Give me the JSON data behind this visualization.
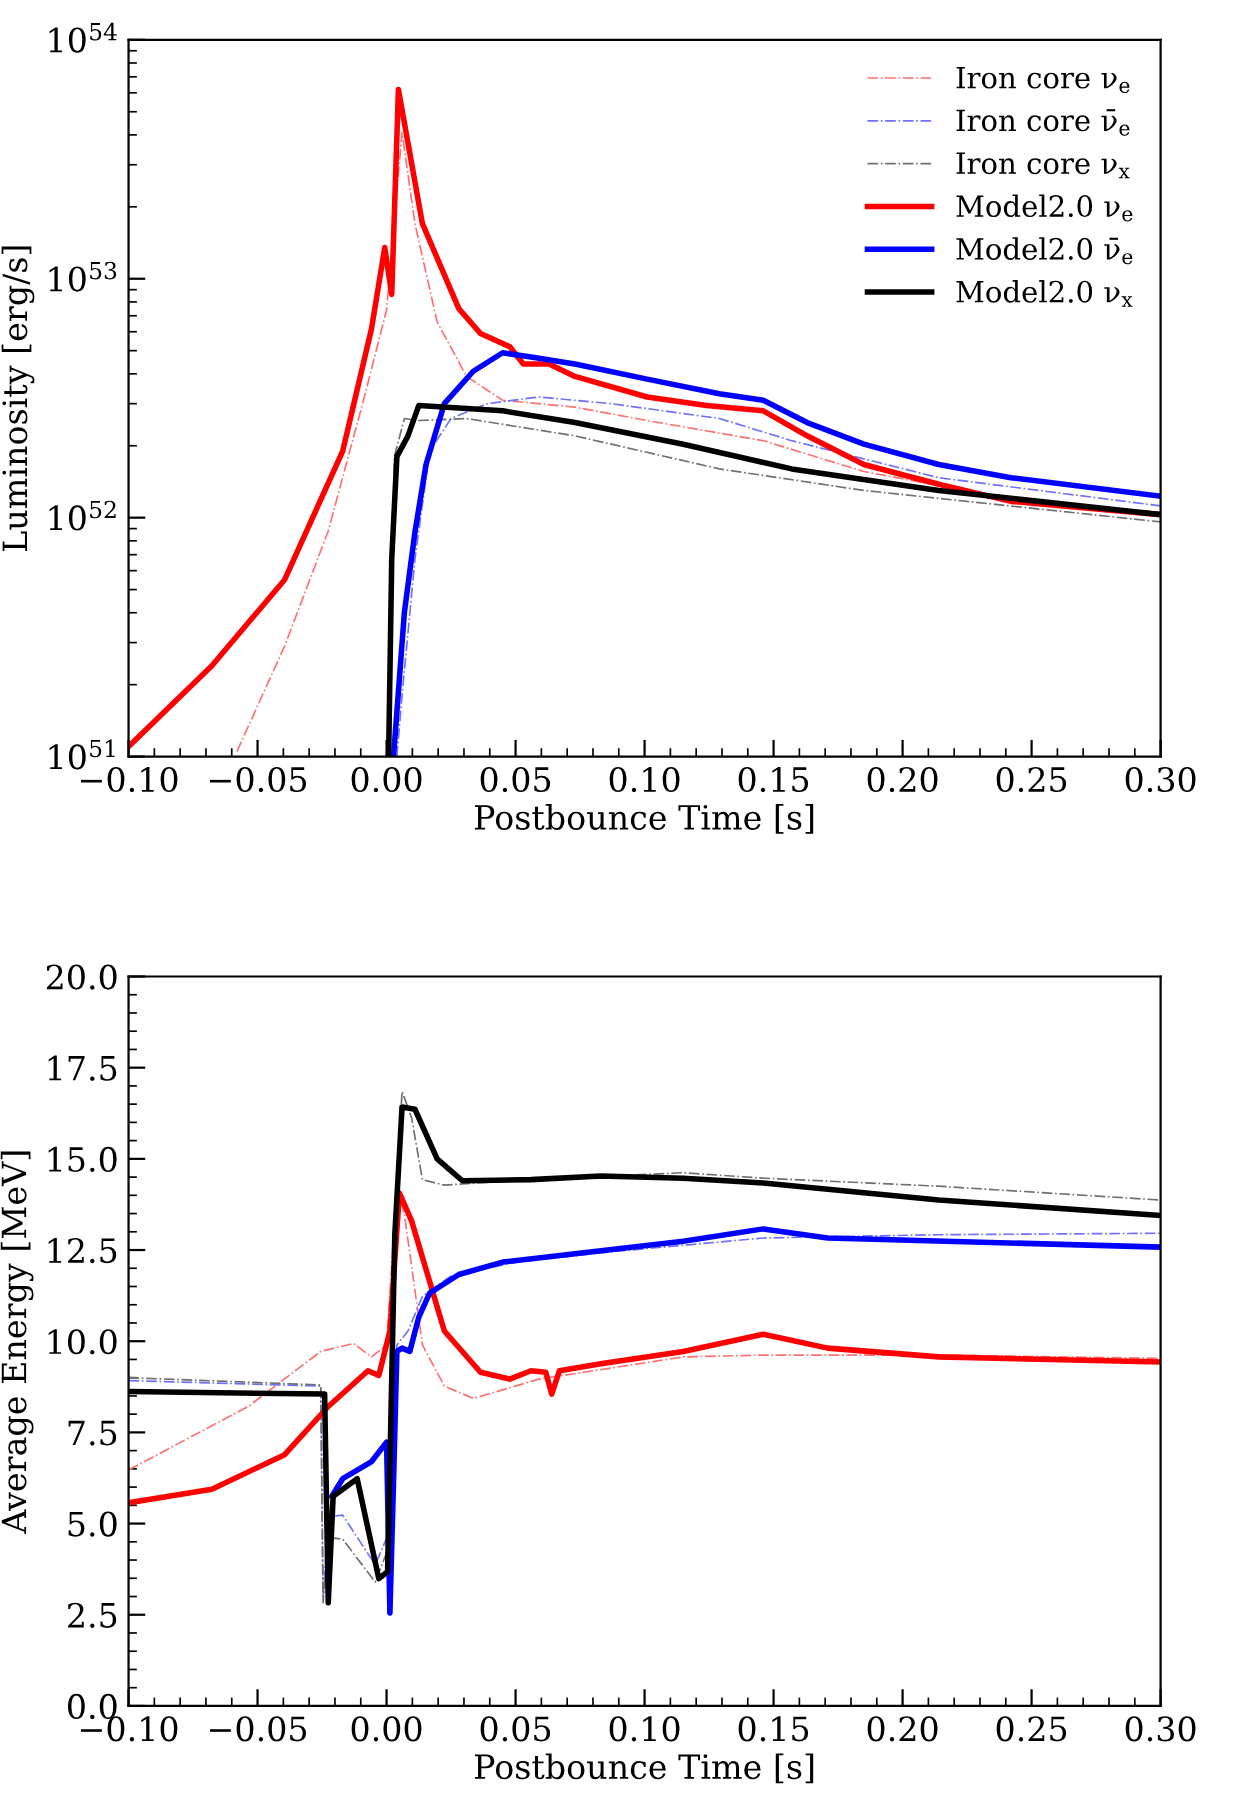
{
  "chart_data": [
    {
      "type": "line",
      "xlabel": "Postbounce Time [s]",
      "ylabel": "Luminosity [erg/s]",
      "log": "y",
      "legend": "top right",
      "grid": false,
      "xlim": [
        -0.1,
        0.3
      ],
      "ylim": [
        1e+51,
        1e+54
      ],
      "xticks": [
        {
          "value": -0.1,
          "label": "−0.10"
        },
        {
          "value": -0.05,
          "label": "−0.05"
        },
        {
          "value": 0.0,
          "label": "0.00"
        },
        {
          "value": 0.05,
          "label": "0.05"
        },
        {
          "value": 0.1,
          "label": "0.10"
        },
        {
          "value": 0.15,
          "label": "0.15"
        },
        {
          "value": 0.2,
          "label": "0.20"
        },
        {
          "value": 0.25,
          "label": "0.25"
        },
        {
          "value": 0.3,
          "label": "0.30"
        }
      ],
      "yticks": [
        {
          "value": 1e+51,
          "label": "10$^{51}$"
        },
        {
          "value": 1e+52,
          "label": "10$^{52}$"
        },
        {
          "value": 1e+53,
          "label": "10$^{53}$"
        },
        {
          "value": 1e+54,
          "label": "10$^{54}$"
        }
      ],
      "series": [
        {
          "name": "Iron core ν$_{e}$",
          "color": "#ff7070",
          "line_style": "dashdot",
          "x": [
            -0.058,
            -0.0395,
            -0.0226,
            -0.0086,
            0.0,
            0.006,
            0.011,
            0.0196,
            0.031,
            0.045,
            0.073,
            0.101,
            0.146,
            0.185,
            0.242,
            0.3
          ],
          "values": [
            1.05e+51,
            2.9e+51,
            8.8e+51,
            3.2e+52,
            7.4e+52,
            4.1e+53,
            1.7e+53,
            6.6e+52,
            3.9e+52,
            3.1e+52,
            2.9e+52,
            2.55e+52,
            2.1e+52,
            1.56e+52,
            1.2e+52,
            1.05e+52
          ]
        },
        {
          "name": "Iron core ν̄$_{e}$",
          "color": "#7070ff",
          "line_style": "dashdot",
          "x": [
            0.004,
            0.006,
            0.011,
            0.0167,
            0.025,
            0.039,
            0.059,
            0.087,
            0.129,
            0.157,
            0.214,
            0.3
          ],
          "values": [
            1e+51,
            1.8e+51,
            6.7e+51,
            1.9e+52,
            2.6e+52,
            3e+52,
            3.2e+52,
            3e+52,
            2.6e+52,
            2.1e+52,
            1.47e+52,
            1.12e+52
          ]
        },
        {
          "name": "Iron core ν$_{x}$",
          "color": "#707070",
          "line_style": "dashdot",
          "x": [
            0.0014,
            0.003,
            0.0069,
            0.0125,
            0.031,
            0.073,
            0.129,
            0.185,
            0.3
          ],
          "values": [
            1e+51,
            1.8e+52,
            2.6e+52,
            2.55e+52,
            2.6e+52,
            2.2e+52,
            1.6e+52,
            1.3e+52,
            9.6e+51
          ]
        },
        {
          "name": "Model2.0 ν$_{e}$",
          "color": "#ff0000",
          "line_style": "solid",
          "x": [
            -0.1,
            -0.0677,
            -0.0395,
            -0.017,
            -0.0058,
            -0.0007,
            0.002,
            0.0046,
            0.0139,
            0.028,
            0.0364,
            0.0477,
            0.053,
            0.063,
            0.073,
            0.101,
            0.124,
            0.146,
            0.163,
            0.185,
            0.214,
            0.242,
            0.3
          ],
          "values": [
            1.1e+51,
            2.4e+51,
            5.5e+51,
            1.9e+52,
            6.2e+52,
            1.35e+53,
            8.6e+52,
            6.2e+53,
            1.7e+53,
            7.5e+52,
            5.9e+52,
            5.2e+52,
            4.4e+52,
            4.4e+52,
            3.9e+52,
            3.2e+52,
            2.95e+52,
            2.8e+52,
            2.2e+52,
            1.67e+52,
            1.38e+52,
            1.17e+52,
            1.03e+52
          ]
        },
        {
          "name": "Model2.0 ν̄$_{e}$",
          "color": "#0000ff",
          "line_style": "solid",
          "x": [
            0.0027,
            0.0069,
            0.011,
            0.0153,
            0.0224,
            0.0336,
            0.045,
            0.056,
            0.073,
            0.101,
            0.129,
            0.146,
            0.163,
            0.185,
            0.214,
            0.242,
            0.3
          ],
          "values": [
            1e+51,
            4e+51,
            8.7e+51,
            1.67e+52,
            3e+52,
            4.1e+52,
            4.9e+52,
            4.7e+52,
            4.4e+52,
            3.8e+52,
            3.3e+52,
            3.1e+52,
            2.5e+52,
            2.03e+52,
            1.67e+52,
            1.47e+52,
            1.23e+52
          ]
        },
        {
          "name": "Model2.0 ν$_{x}$",
          "color": "#000000",
          "line_style": "solid",
          "x": [
            0.0008,
            0.002,
            0.004,
            0.0083,
            0.0125,
            0.045,
            0.073,
            0.115,
            0.157,
            0.214,
            0.3
          ],
          "values": [
            1e+51,
            6.7e+51,
            1.8e+52,
            2.2e+52,
            2.95e+52,
            2.8e+52,
            2.5e+52,
            2.03e+52,
            1.6e+52,
            1.3e+52,
            1.03e+52
          ]
        }
      ]
    },
    {
      "type": "line",
      "xlabel": "Postbounce Time [s]",
      "ylabel": "Average Energy [MeV]",
      "legend": false,
      "grid": false,
      "xlim": [
        -0.1,
        0.3
      ],
      "ylim": [
        0,
        20
      ],
      "xticks": [
        {
          "value": -0.1,
          "label": "−0.10"
        },
        {
          "value": -0.05,
          "label": "−0.05"
        },
        {
          "value": 0.0,
          "label": "0.00"
        },
        {
          "value": 0.05,
          "label": "0.05"
        },
        {
          "value": 0.1,
          "label": "0.10"
        },
        {
          "value": 0.15,
          "label": "0.15"
        },
        {
          "value": 0.2,
          "label": "0.20"
        },
        {
          "value": 0.25,
          "label": "0.25"
        },
        {
          "value": 0.3,
          "label": "0.30"
        }
      ],
      "yticks": [
        {
          "value": 0,
          "label": "0.0"
        },
        {
          "value": 2.5,
          "label": "2.5"
        },
        {
          "value": 5,
          "label": "5.0"
        },
        {
          "value": 7.5,
          "label": "7.5"
        },
        {
          "value": 10,
          "label": "10.0"
        },
        {
          "value": 12.5,
          "label": "12.5"
        },
        {
          "value": 15,
          "label": "15.0"
        },
        {
          "value": 17.5,
          "label": "17.5"
        },
        {
          "value": 20,
          "label": "20.0"
        }
      ],
      "series": [
        {
          "color": "#ff7070",
          "line_style": "dashdot",
          "x": [
            -0.1,
            -0.0536,
            -0.0255,
            -0.0128,
            -0.0058,
            0.0,
            0.004,
            0.0069,
            0.0139,
            0.0224,
            0.0336,
            0.059,
            0.115,
            0.146,
            0.214,
            0.3
          ],
          "values": [
            6.47,
            8.21,
            9.72,
            9.94,
            9.57,
            9.9,
            14.25,
            13.49,
            9.9,
            8.77,
            8.43,
            8.96,
            9.57,
            9.62,
            9.62,
            9.53
          ]
        },
        {
          "color": "#7070ff",
          "line_style": "dashdot",
          "x": [
            -0.1,
            -0.0255,
            -0.0246,
            -0.0226,
            -0.017,
            -0.0044,
            0.0013,
            0.004,
            0.0083,
            0.0139,
            0.025,
            0.0505,
            0.087,
            0.146,
            0.214,
            0.3
          ],
          "values": [
            8.92,
            8.77,
            2.92,
            5.19,
            5.23,
            3.87,
            4.81,
            9.9,
            10.28,
            11.23,
            11.79,
            12.17,
            12.45,
            12.83,
            12.92,
            12.96
          ]
        },
        {
          "color": "#707070",
          "line_style": "dashdot",
          "x": [
            -0.1,
            -0.0255,
            -0.0246,
            -0.0226,
            -0.017,
            -0.0044,
            0.0013,
            0.004,
            0.006,
            0.0097,
            0.0139,
            0.0224,
            0.056,
            0.115,
            0.146,
            0.214,
            0.3
          ],
          "values": [
            9.0,
            8.8,
            2.83,
            4.62,
            4.57,
            3.4,
            4.43,
            14.25,
            16.85,
            16.13,
            14.43,
            14.28,
            14.43,
            14.62,
            14.47,
            14.25,
            13.87
          ]
        },
        {
          "color": "#ff0000",
          "line_style": "solid",
          "x": [
            -0.1,
            -0.0677,
            -0.0395,
            -0.0226,
            -0.0072,
            -0.003,
            0.0013,
            0.005,
            0.0097,
            0.0224,
            0.0364,
            0.0477,
            0.056,
            0.0617,
            0.064,
            0.067,
            0.083,
            0.115,
            0.146,
            0.171,
            0.214,
            0.3
          ],
          "values": [
            5.57,
            5.94,
            6.89,
            8.21,
            9.19,
            9.06,
            10.28,
            14.06,
            13.3,
            10.28,
            9.15,
            8.96,
            9.19,
            9.15,
            8.55,
            9.19,
            9.38,
            9.72,
            10.19,
            9.81,
            9.57,
            9.43
          ]
        },
        {
          "color": "#0000ff",
          "line_style": "solid",
          "x": [
            -0.0212,
            -0.017,
            -0.0058,
            0.0,
            0.0013,
            0.0027,
            0.004,
            0.006,
            0.009,
            0.0125,
            0.0167,
            0.028,
            0.045,
            0.073,
            0.115,
            0.146,
            0.171,
            0.3
          ],
          "values": [
            5.75,
            6.23,
            6.7,
            7.23,
            2.55,
            6.13,
            9.72,
            9.81,
            9.72,
            10.66,
            11.32,
            11.83,
            12.17,
            12.4,
            12.74,
            13.08,
            12.83,
            12.58
          ]
        },
        {
          "color": "#000000",
          "line_style": "solid",
          "x": [
            -0.1,
            -0.024,
            -0.0226,
            -0.0207,
            -0.0114,
            -0.003,
            0.0004,
            0.0032,
            0.006,
            0.011,
            0.0196,
            0.0294,
            0.056,
            0.083,
            0.115,
            0.146,
            0.214,
            0.3
          ],
          "values": [
            8.62,
            8.55,
            2.83,
            5.75,
            6.23,
            3.49,
            3.68,
            12.92,
            16.42,
            16.36,
            15.0,
            14.4,
            14.43,
            14.53,
            14.47,
            14.34,
            13.87,
            13.45
          ]
        }
      ]
    }
  ]
}
